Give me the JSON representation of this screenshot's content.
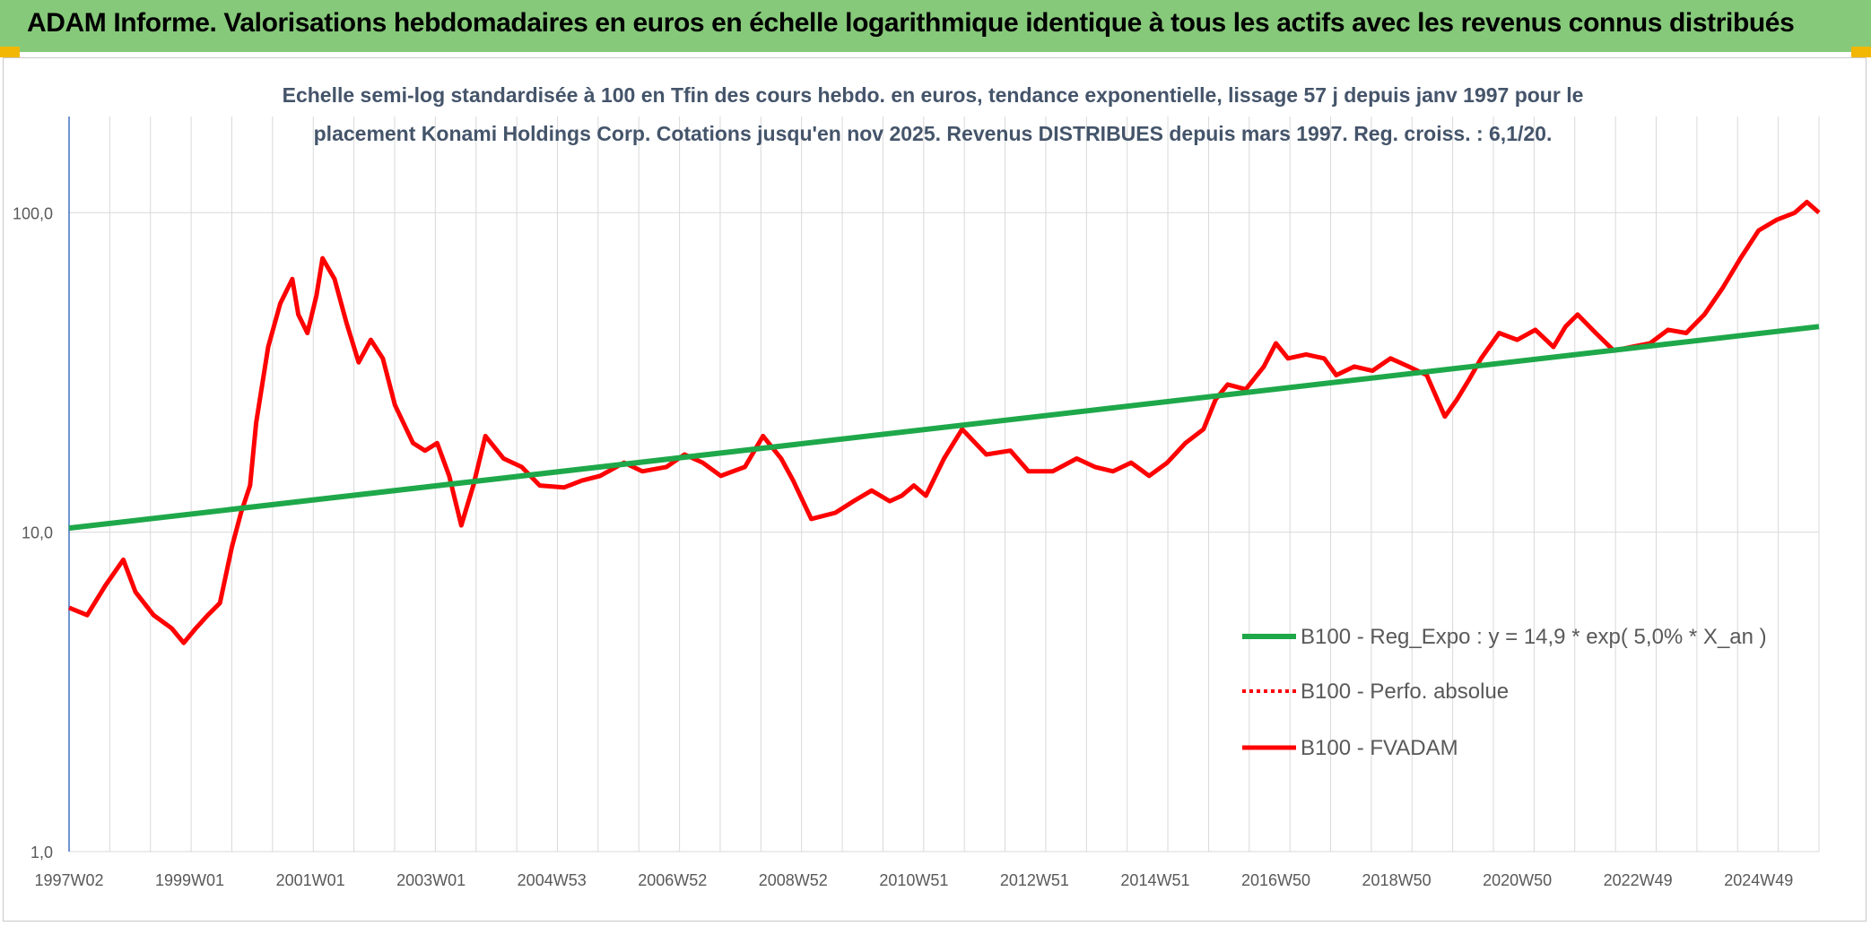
{
  "banner": {
    "title": "ADAM Informe. Valorisations hebdomadaires en euros en échelle logarithmique identique à tous les actifs avec les revenus connus distribués"
  },
  "colors": {
    "banner_bg": "#86c97a",
    "corner_accent": "#f2b705",
    "fvadam_line": "#ff0000",
    "regression_line": "#1ea84a",
    "perfo_line": "#ff0000",
    "grid": "#d9d9d9",
    "axis": "#4472c4",
    "title_text": "#44546a"
  },
  "chart_data": {
    "type": "line",
    "title_lines": [
      "Echelle semi-log standardisée à 100 en Tfin des cours hebdo. en euros, tendance exponentielle, lissage 57 j depuis janv 1997 pour le",
      "placement Konami Holdings Corp. Cotations jusqu'en nov 2025. Revenus DISTRIBUES depuis mars 1997. Reg. croiss. : 6,1/20."
    ],
    "y_scale": "log",
    "ylim": [
      1,
      200
    ],
    "y_ticks": [
      1,
      10,
      100
    ],
    "y_tick_labels": [
      "1,0",
      "10,0",
      "100,0"
    ],
    "x_range": [
      1997.0,
      2026.0
    ],
    "x_ticks": [
      1997.0,
      1999.0,
      2001.0,
      2003.0,
      2005.0,
      2007.0,
      2009.0,
      2011.0,
      2013.0,
      2015.0,
      2017.0,
      2019.0,
      2021.0,
      2023.0,
      2025.0
    ],
    "x_tick_labels": [
      "1997W02",
      "1999W01",
      "2001W01",
      "2003W01",
      "2004W53",
      "2006W52",
      "2008W52",
      "2010W51",
      "2012W51",
      "2014W51",
      "2016W50",
      "2018W50",
      "2020W50",
      "2022W49",
      "2024W49"
    ],
    "grid": "vertical and horizontal",
    "legend_position": "right-bottom",
    "series": [
      {
        "name": "B100 - Reg_Expo : y = 14,9 * exp( 5,0% *  X_an )",
        "style": "solid-thick",
        "color": "#1ea84a",
        "x": [
          1997.0,
          2026.0
        ],
        "values": [
          10.3,
          44.0
        ]
      },
      {
        "name": "B100 - Perfo. absolue",
        "style": "dotted",
        "color": "#ff0000",
        "x": [],
        "values": []
      },
      {
        "name": "B100 - FVADAM",
        "style": "solid",
        "color": "#ff0000",
        "x": [
          1997.0,
          1997.3,
          1997.6,
          1997.9,
          1998.1,
          1998.4,
          1998.7,
          1998.9,
          1999.1,
          1999.3,
          1999.5,
          1999.7,
          1999.85,
          2000.0,
          2000.1,
          2000.3,
          2000.5,
          2000.7,
          2000.8,
          2000.95,
          2001.1,
          2001.2,
          2001.4,
          2001.6,
          2001.8,
          2002.0,
          2002.2,
          2002.4,
          2002.7,
          2002.9,
          2003.1,
          2003.3,
          2003.5,
          2003.7,
          2003.9,
          2004.2,
          2004.5,
          2004.8,
          2005.2,
          2005.5,
          2005.8,
          2006.2,
          2006.5,
          2006.9,
          2007.2,
          2007.5,
          2007.8,
          2008.2,
          2008.5,
          2008.8,
          2009.0,
          2009.3,
          2009.7,
          2010.0,
          2010.3,
          2010.6,
          2010.8,
          2011.0,
          2011.2,
          2011.5,
          2011.8,
          2012.2,
          2012.6,
          2012.9,
          2013.3,
          2013.7,
          2014.0,
          2014.3,
          2014.6,
          2014.9,
          2015.2,
          2015.5,
          2015.8,
          2016.0,
          2016.2,
          2016.5,
          2016.8,
          2017.0,
          2017.2,
          2017.5,
          2017.8,
          2018.0,
          2018.3,
          2018.6,
          2018.9,
          2019.2,
          2019.5,
          2019.8,
          2020.0,
          2020.2,
          2020.4,
          2020.7,
          2021.0,
          2021.3,
          2021.6,
          2021.8,
          2022.0,
          2022.3,
          2022.6,
          2022.9,
          2023.2,
          2023.5,
          2023.8,
          2024.1,
          2024.4,
          2024.7,
          2025.0,
          2025.3,
          2025.6,
          2025.8,
          2026.0
        ],
        "values": [
          5.8,
          5.5,
          6.8,
          8.2,
          6.5,
          5.5,
          5.0,
          4.5,
          5.0,
          5.5,
          6.0,
          9.0,
          11.5,
          14.0,
          22.0,
          38.0,
          52.0,
          62.0,
          48.0,
          42.0,
          55.0,
          72.0,
          62.0,
          45.0,
          34.0,
          40.0,
          35.0,
          25.0,
          19.0,
          18.0,
          19.0,
          15.0,
          10.5,
          14.0,
          20.0,
          17.0,
          16.0,
          14.0,
          13.8,
          14.5,
          15.0,
          16.5,
          15.5,
          16.0,
          17.5,
          16.5,
          15.0,
          16.0,
          20.0,
          17.0,
          14.5,
          11.0,
          11.5,
          12.5,
          13.5,
          12.5,
          13.0,
          14.0,
          13.0,
          17.0,
          21.0,
          17.5,
          18.0,
          15.5,
          15.5,
          17.0,
          16.0,
          15.5,
          16.5,
          15.0,
          16.5,
          19.0,
          21.0,
          26.0,
          29.0,
          28.0,
          33.0,
          39.0,
          35.0,
          36.0,
          35.0,
          31.0,
          33.0,
          32.0,
          35.0,
          33.0,
          31.0,
          23.0,
          26.0,
          30.0,
          35.0,
          42.0,
          40.0,
          43.0,
          38.0,
          44.0,
          48.0,
          42.0,
          37.0,
          38.0,
          39.0,
          43.0,
          42.0,
          48.0,
          58.0,
          72.0,
          88.0,
          95.0,
          100.0,
          108.0,
          100.0
        ]
      }
    ]
  }
}
